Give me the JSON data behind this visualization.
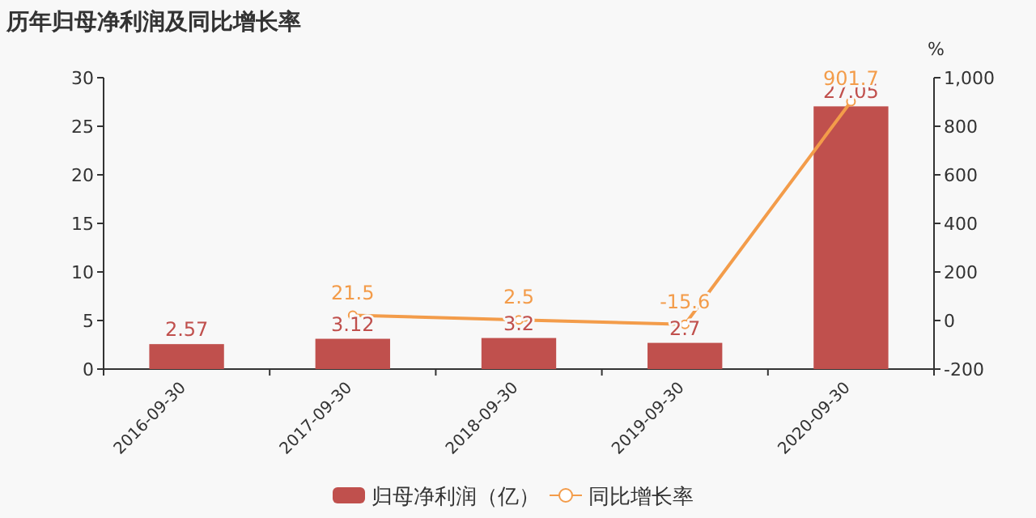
{
  "chart_data": {
    "type": "bar",
    "title": "历年归母净利润及同比增长率",
    "categories": [
      "2016-09-30",
      "2017-09-30",
      "2018-09-30",
      "2019-09-30",
      "2020-09-30"
    ],
    "series": [
      {
        "name": "归母净利润（亿）",
        "color": "#c0504d",
        "values": [
          2.57,
          3.12,
          3.2,
          2.7,
          27.05
        ]
      },
      {
        "type": "line",
        "name": "同比增长率",
        "color": "#f39c4a",
        "axis": "y2",
        "marker": "circle",
        "values": [
          null,
          21.5,
          2.5,
          -15.6,
          901.7
        ]
      }
    ],
    "ylim": [
      0,
      30
    ],
    "yticks": [
      0,
      5,
      10,
      15,
      20,
      25,
      30
    ],
    "y2lim": [
      -200,
      1000
    ],
    "y2ticks": [
      {
        "value": -200,
        "label": "-200"
      },
      0,
      200,
      400,
      600,
      800,
      {
        "value": 1000,
        "label": "1,000"
      }
    ],
    "y2label": "%",
    "data_labels": true,
    "legend": "bottom"
  }
}
